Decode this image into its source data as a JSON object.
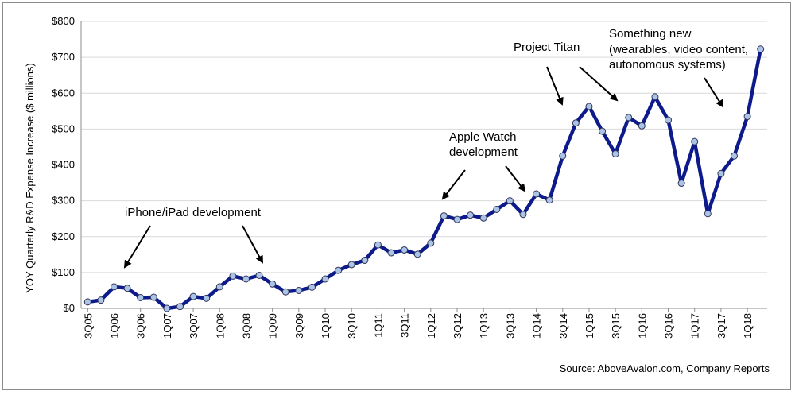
{
  "chart_data": {
    "type": "line",
    "ylabel": "YOY Quarterly R&D Expense Increase ($ millions)",
    "ylim": [
      0,
      800
    ],
    "yticks": [
      "$0",
      "$100",
      "$200",
      "$300",
      "$400",
      "$500",
      "$600",
      "$700",
      "$800"
    ],
    "grid": "horizontal",
    "colors": {
      "line": "#0d1a8c",
      "marker_fill": "#a9c4e4",
      "marker_stroke": "#33335a",
      "grid": "#d9d9d9"
    },
    "quarters": [
      "3Q05",
      "4Q05",
      "1Q06",
      "2Q06",
      "3Q06",
      "4Q06",
      "1Q07",
      "2Q07",
      "3Q07",
      "4Q07",
      "1Q08",
      "2Q08",
      "3Q08",
      "4Q08",
      "1Q09",
      "2Q09",
      "3Q09",
      "4Q09",
      "1Q10",
      "2Q10",
      "3Q10",
      "4Q10",
      "1Q11",
      "2Q11",
      "3Q11",
      "4Q11",
      "1Q12",
      "2Q12",
      "3Q12",
      "4Q12",
      "1Q13",
      "2Q13",
      "3Q13",
      "4Q13",
      "1Q14",
      "2Q14",
      "3Q14",
      "4Q14",
      "1Q15",
      "2Q15",
      "3Q15",
      "4Q15",
      "1Q16",
      "2Q16",
      "3Q16",
      "4Q16",
      "1Q17",
      "2Q17",
      "3Q17",
      "4Q17",
      "1Q18",
      "2Q18"
    ],
    "xtick_labels": [
      "3Q05",
      "1Q06",
      "3Q06",
      "1Q07",
      "3Q07",
      "1Q08",
      "3Q08",
      "1Q09",
      "3Q09",
      "1Q10",
      "3Q10",
      "1Q11",
      "3Q11",
      "1Q12",
      "3Q12",
      "1Q13",
      "3Q13",
      "1Q14",
      "3Q14",
      "1Q15",
      "3Q15",
      "1Q16",
      "3Q16",
      "1Q17",
      "3Q17",
      "1Q18"
    ],
    "values": [
      18,
      23,
      60,
      56,
      30,
      31,
      0,
      5,
      33,
      28,
      60,
      90,
      82,
      92,
      68,
      46,
      50,
      59,
      82,
      106,
      122,
      134,
      177,
      155,
      163,
      151,
      182,
      258,
      248,
      260,
      252,
      276,
      300,
      262,
      319,
      302,
      425,
      517,
      563,
      494,
      431,
      532,
      509,
      590,
      525,
      349,
      465,
      264,
      376,
      425,
      535,
      723
    ],
    "annotations": [
      {
        "lines": [
          "iPhone/iPad development"
        ]
      },
      {
        "lines": [
          "Apple Watch",
          "development"
        ]
      },
      {
        "lines": [
          "Project Titan"
        ]
      },
      {
        "lines": [
          "Something new",
          "(wearables, video content,",
          "autonomous systems)"
        ]
      }
    ],
    "source": "Source: AboveAvalon.com, Company Reports"
  }
}
